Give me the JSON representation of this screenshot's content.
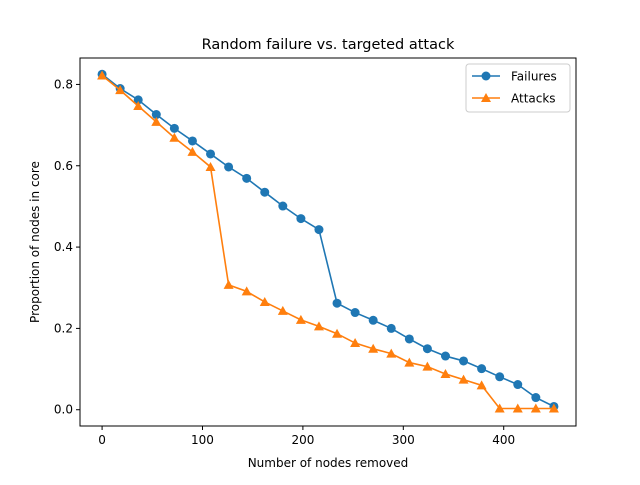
{
  "chart_data": {
    "type": "line",
    "title": "Random failure vs. targeted attack",
    "xlabel": "Number of nodes removed",
    "ylabel": "Proportion of nodes in core",
    "xlim": [
      -22,
      472
    ],
    "ylim": [
      -0.04,
      0.865
    ],
    "xticks": [
      0,
      100,
      200,
      300,
      400
    ],
    "xtick_labels": [
      "0",
      "100",
      "200",
      "300",
      "400"
    ],
    "yticks": [
      0.0,
      0.2,
      0.4,
      0.6,
      0.8
    ],
    "ytick_labels": [
      "0.0",
      "0.2",
      "0.4",
      "0.6",
      "0.8"
    ],
    "grid": false,
    "legend_position": "top-right",
    "series": [
      {
        "name": "Failures",
        "color": "#1f77b4",
        "marker": "circle",
        "x": [
          0,
          18,
          36,
          54,
          72,
          90,
          108,
          126,
          144,
          162,
          180,
          198,
          216,
          234,
          252,
          270,
          288,
          306,
          324,
          342,
          360,
          378,
          396,
          414,
          432,
          450
        ],
        "y": [
          0.825,
          0.79,
          0.762,
          0.726,
          0.692,
          0.661,
          0.629,
          0.597,
          0.569,
          0.535,
          0.501,
          0.47,
          0.443,
          0.262,
          0.239,
          0.22,
          0.2,
          0.174,
          0.15,
          0.132,
          0.12,
          0.101,
          0.081,
          0.062,
          0.03,
          0.008
        ]
      },
      {
        "name": "Attacks",
        "color": "#ff7f0e",
        "marker": "triangle",
        "x": [
          0,
          18,
          36,
          54,
          72,
          90,
          108,
          126,
          144,
          162,
          180,
          198,
          216,
          234,
          252,
          270,
          288,
          306,
          324,
          342,
          360,
          378,
          396,
          414,
          432,
          450
        ],
        "y": [
          0.822,
          0.786,
          0.747,
          0.708,
          0.669,
          0.634,
          0.597,
          0.307,
          0.291,
          0.265,
          0.243,
          0.221,
          0.205,
          0.187,
          0.164,
          0.15,
          0.138,
          0.116,
          0.106,
          0.088,
          0.074,
          0.06,
          0.003,
          0.003,
          0.003,
          0.003
        ]
      }
    ]
  }
}
